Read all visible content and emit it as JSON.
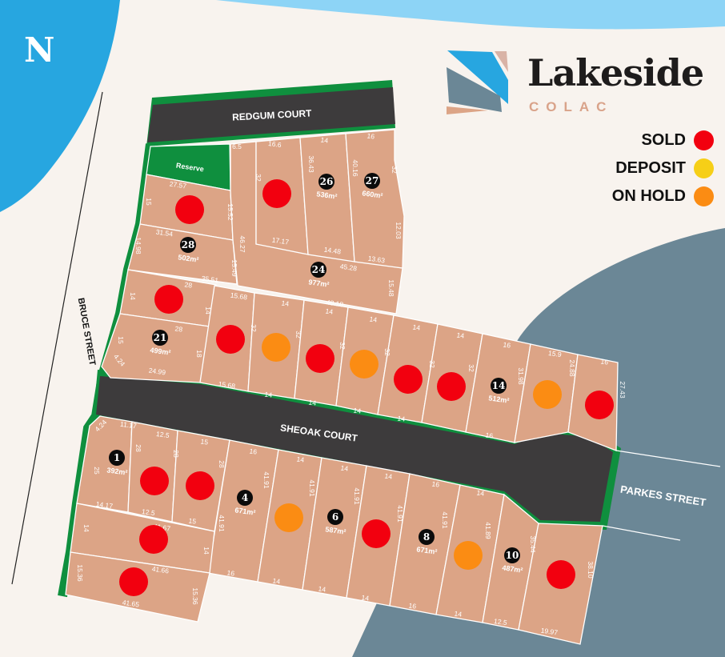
{
  "brand": {
    "name": "Lakeside",
    "subtitle": "COLAC"
  },
  "north_label": "N",
  "legend": [
    {
      "label": "SOLD",
      "status": "sold",
      "color": "#f2000f"
    },
    {
      "label": "DEPOSIT",
      "status": "deposit",
      "color": "#f6cf17"
    },
    {
      "label": "ON HOLD",
      "status": "on_hold",
      "color": "#fb8c13"
    }
  ],
  "colors": {
    "lot": "#dca486",
    "road": "#3d3b3c",
    "green": "#0f8f3e",
    "lake": "#27a6e0",
    "lake_light": "#8dd4f6",
    "water_grey": "#6b8796",
    "land": "#f8f3ee"
  },
  "streets": {
    "redgum": "REDGUM COURT",
    "sheoak": "SHEOAK COURT",
    "bruce": "BRUCE STREET",
    "parkes": "PARKES STREET"
  },
  "reserve_label": "Reserve",
  "lots": [
    {
      "number": "",
      "area": "",
      "status": "sold"
    },
    {
      "number": "28",
      "area": "502m²",
      "status": ""
    },
    {
      "number": "",
      "area": "",
      "status": "sold"
    },
    {
      "number": "21",
      "area": "499m²",
      "status": ""
    },
    {
      "number": "24",
      "area": "977m²",
      "status": ""
    },
    {
      "number": "",
      "area": "",
      "status": "sold"
    },
    {
      "number": "26",
      "area": "536m²",
      "status": ""
    },
    {
      "number": "27",
      "area": "660m²",
      "status": ""
    },
    {
      "number": "",
      "area": "",
      "status": "sold"
    },
    {
      "number": "",
      "area": "",
      "status": "on_hold"
    },
    {
      "number": "",
      "area": "",
      "status": "sold"
    },
    {
      "number": "",
      "area": "",
      "status": "on_hold"
    },
    {
      "number": "",
      "area": "",
      "status": "sold"
    },
    {
      "number": "",
      "area": "",
      "status": "sold"
    },
    {
      "number": "14",
      "area": "512m²",
      "status": ""
    },
    {
      "number": "",
      "area": "",
      "status": "on_hold"
    },
    {
      "number": "",
      "area": "",
      "status": "sold"
    },
    {
      "number": "1",
      "area": "392m²",
      "status": ""
    },
    {
      "number": "",
      "area": "",
      "status": "sold"
    },
    {
      "number": "",
      "area": "",
      "status": "sold"
    },
    {
      "number": "4",
      "area": "671m²",
      "status": ""
    },
    {
      "number": "",
      "area": "",
      "status": "on_hold"
    },
    {
      "number": "6",
      "area": "587m²",
      "status": ""
    },
    {
      "number": "",
      "area": "",
      "status": "sold"
    },
    {
      "number": "8",
      "area": "671m²",
      "status": ""
    },
    {
      "number": "",
      "area": "",
      "status": "on_hold"
    },
    {
      "number": "10",
      "area": "487m²",
      "status": ""
    },
    {
      "number": "",
      "area": "",
      "status": "sold"
    },
    {
      "number": "",
      "area": "",
      "status": "sold"
    },
    {
      "number": "",
      "area": "",
      "status": "sold"
    }
  ],
  "dimensions": [
    "6.5",
    "16.6",
    "14",
    "16",
    "27.57",
    "15",
    "15.52",
    "32",
    "36.43",
    "40.16",
    "32",
    "17.17",
    "14.48",
    "13.63",
    "12.03",
    "31.54",
    "14.98",
    "15.49",
    "46.27",
    "45.28",
    "35.51",
    "28",
    "14",
    "14",
    "48.18",
    "15.48",
    "28",
    "15",
    "18",
    "4.24",
    "24.99",
    "15.68",
    "14",
    "14",
    "14",
    "14",
    "14",
    "16",
    "15.9",
    "16",
    "32",
    "32",
    "32",
    "32",
    "32",
    "32",
    "31.98",
    "24.88",
    "27.43",
    "15.68",
    "14",
    "14",
    "14",
    "14",
    "16",
    "4.24",
    "11.17",
    "12.5",
    "15",
    "16",
    "14",
    "14",
    "14",
    "16",
    "14",
    "28",
    "28",
    "28",
    "25",
    "41.91",
    "41.91",
    "41.91",
    "41.91",
    "41.91",
    "41.89",
    "35.44",
    "38.10",
    "14.17",
    "12.5",
    "15",
    "41.67",
    "14",
    "14",
    "41.91",
    "15.36",
    "41.66",
    "15.36",
    "41.65",
    "16",
    "14",
    "14",
    "14",
    "16",
    "14",
    "12.5",
    "19.97"
  ]
}
